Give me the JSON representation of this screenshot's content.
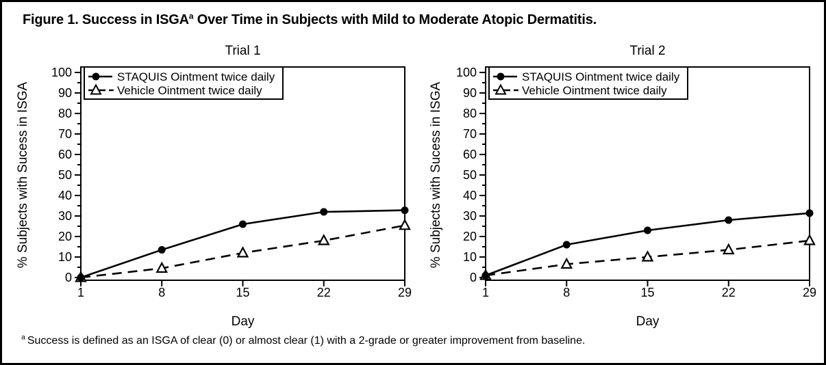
{
  "figure": {
    "title": {
      "before": "Figure 1. Success in ISGA",
      "sup": "a",
      "after": " Over Time in Subjects with Mild to Moderate Atopic Dermatitis."
    },
    "footnote": {
      "sup": "a",
      "text": "Success is defined as an ISGA of clear (0) or almost clear (1) with a 2-grade or greater improvement from baseline."
    }
  },
  "colors": {
    "foreground": "#000000",
    "background": "#ffffff"
  },
  "chart_data": [
    {
      "type": "line",
      "title": "Trial 1",
      "xlabel": "Day",
      "ylabel": "% Subjects with Sucess in ISGA",
      "x": [
        1,
        8,
        15,
        22,
        29
      ],
      "xlim": [
        1,
        29
      ],
      "ylim": [
        0,
        100
      ],
      "ytick_major_step": 10,
      "ytick_minor_step": 5,
      "grid": false,
      "legend_position": "top-left",
      "series": [
        {
          "name": "STAQUIS Ointment twice daily",
          "marker": "filled-circle",
          "line_style": "solid",
          "values": [
            0,
            13.5,
            26,
            32,
            32.8
          ]
        },
        {
          "name": "Vehicle Ointment twice daily",
          "marker": "open-triangle",
          "line_style": "dashed",
          "values": [
            0,
            4.5,
            12,
            18,
            25.4
          ]
        }
      ]
    },
    {
      "type": "line",
      "title": "Trial 2",
      "xlabel": "Day",
      "ylabel": "% Subjects with Sucess in ISGA",
      "x": [
        1,
        8,
        15,
        22,
        29
      ],
      "xlim": [
        1,
        29
      ],
      "ylim": [
        0,
        100
      ],
      "ytick_major_step": 10,
      "ytick_minor_step": 5,
      "grid": false,
      "legend_position": "top-left",
      "series": [
        {
          "name": "STAQUIS Ointment twice daily",
          "marker": "filled-circle",
          "line_style": "solid",
          "values": [
            1,
            16,
            23,
            28,
            31.4
          ]
        },
        {
          "name": "Vehicle Ointment twice daily",
          "marker": "open-triangle",
          "line_style": "dashed",
          "values": [
            1,
            6.5,
            10,
            13.5,
            18
          ]
        }
      ]
    }
  ]
}
